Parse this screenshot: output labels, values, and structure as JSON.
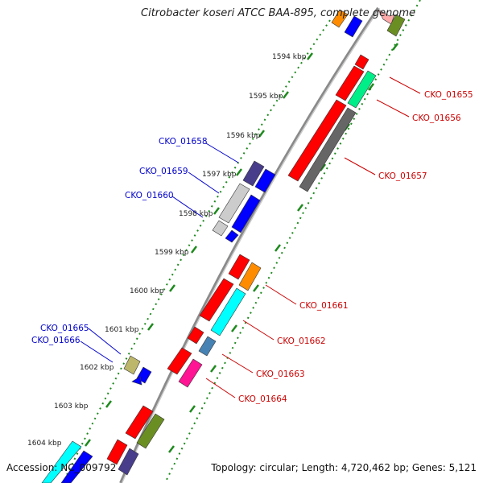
{
  "title": "Citrobacter koseri ATCC BAA-895, complete genome",
  "footer": {
    "accession": "Accession: NC_009792",
    "summary": "Topology: circular; Length: 4,720,462 bp; Genes: 5,121"
  },
  "colors": {
    "backbone": "#888888",
    "ticks": "#1e8a1e",
    "forward_label": "#cc0000",
    "reverse_label": "#0000cc"
  },
  "scale_labels": [
    "1594 kbp",
    "1595 kbp",
    "1596 kbp",
    "1597 kbp",
    "1598 kbp",
    "1599 kbp",
    "1600 kbp",
    "1601 kbp",
    "1602 kbp",
    "1603 kbp",
    "1604 kbp"
  ],
  "gene_labels": {
    "right": [
      "CKO_01655",
      "CKO_01656",
      "CKO_01657",
      "CKO_01661",
      "CKO_01662",
      "CKO_01663",
      "CKO_01664"
    ],
    "left": [
      "CKO_01658",
      "CKO_01659",
      "CKO_01660",
      "CKO_01665",
      "CKO_01666"
    ]
  }
}
